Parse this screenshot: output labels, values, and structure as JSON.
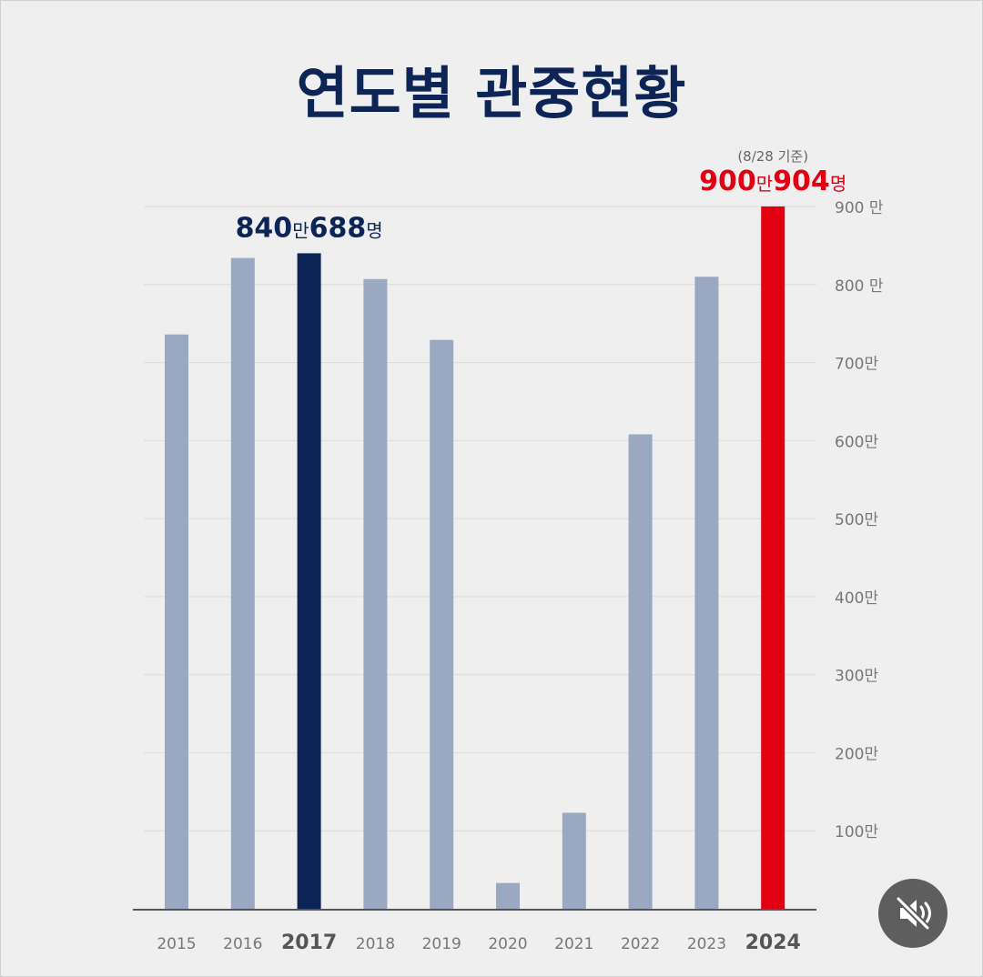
{
  "title": "연도별 관중현황",
  "chart_data": {
    "type": "bar",
    "categories": [
      "2015",
      "2016",
      "2017",
      "2018",
      "2019",
      "2020",
      "2021",
      "2022",
      "2023",
      "2024"
    ],
    "values": [
      736,
      834,
      840.0688,
      807,
      729,
      33,
      123,
      608,
      810,
      900.0904
    ],
    "highlight": {
      "2017": "#0d2456",
      "2024": "#e10012"
    },
    "bar_color": "#9aa9c1",
    "ylim": [
      0,
      900
    ],
    "yticks": [
      {
        "value": 100,
        "label": "100만"
      },
      {
        "value": 200,
        "label": "200만"
      },
      {
        "value": 300,
        "label": "300만"
      },
      {
        "value": 400,
        "label": "400만"
      },
      {
        "value": 500,
        "label": "500만"
      },
      {
        "value": 600,
        "label": "600만"
      },
      {
        "value": 700,
        "label": "700만"
      },
      {
        "value": 800,
        "label": "800 만"
      },
      {
        "value": 900,
        "label": "900 만"
      }
    ],
    "grid": true,
    "annotations": [
      {
        "category": "2017",
        "big1": "840",
        "small1": "만",
        "big2": "688",
        "small2": "명",
        "color": "#0d2456"
      },
      {
        "category": "2024",
        "note": "(8/28 기준)",
        "big1": "900",
        "small1": "만",
        "big2": "904",
        "small2": "명",
        "color": "#e10012"
      }
    ]
  },
  "controls": {
    "mute_icon": "speaker-muted-icon"
  }
}
